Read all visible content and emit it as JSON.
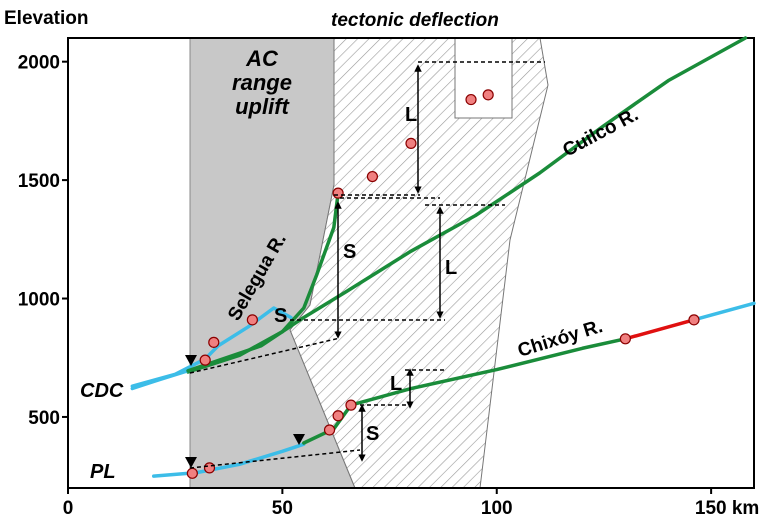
{
  "chart_data": {
    "type": "line",
    "title": "",
    "ylabel": "Elevation",
    "xlabel": "",
    "x_unit": "km",
    "xlim": [
      0,
      160
    ],
    "ylim": [
      200,
      2100
    ],
    "x_ticks": [
      0,
      50,
      100,
      150
    ],
    "y_ticks": [
      500,
      1000,
      1500,
      2000
    ],
    "grid": false,
    "colors": {
      "river_main": "#1a8c3a",
      "river_lower": "#3cbde8",
      "knickzone": "#e01010",
      "uplift_zone": "#c8c8c8",
      "marker_fill": "#f08080",
      "marker_green": "#4ab84a"
    },
    "rivers": [
      {
        "name": "Selegua R.",
        "segments": [
          {
            "color": "river_lower",
            "points": [
              [
                15,
                630
              ],
              [
                25,
                680
              ],
              [
                32,
                745
              ],
              [
                35,
                800
              ],
              [
                42,
                880
              ],
              [
                48,
                960
              ],
              [
                52,
                920
              ]
            ]
          },
          {
            "color": "river_main",
            "points": [
              [
                28,
                690
              ],
              [
                40,
                760
              ],
              [
                50,
                860
              ],
              [
                55,
                960
              ],
              [
                58,
                1100
              ],
              [
                62,
                1300
              ],
              [
                63,
                1445
              ]
            ]
          }
        ]
      },
      {
        "name": "Cuilco R.",
        "segments": [
          {
            "color": "river_lower",
            "points": [
              [
                15,
                620
              ],
              [
                20,
                650
              ],
              [
                28,
                695
              ]
            ]
          },
          {
            "color": "river_main",
            "points": [
              [
                28,
                695
              ],
              [
                45,
                800
              ],
              [
                55,
                920
              ],
              [
                65,
                1030
              ],
              [
                80,
                1200
              ],
              [
                95,
                1350
              ],
              [
                110,
                1530
              ],
              [
                125,
                1730
              ],
              [
                140,
                1920
              ],
              [
                158,
                2100
              ]
            ]
          }
        ]
      },
      {
        "name": "Chixóy R.",
        "segments": [
          {
            "color": "river_lower",
            "points": [
              [
                20,
                250
              ],
              [
                30,
                265
              ],
              [
                40,
                300
              ],
              [
                50,
                355
              ],
              [
                55,
                385
              ]
            ]
          },
          {
            "color": "river_main",
            "points": [
              [
                55,
                390
              ],
              [
                62,
                450
              ],
              [
                66,
                550
              ],
              [
                80,
                620
              ],
              [
                100,
                700
              ],
              [
                120,
                790
              ],
              [
                130,
                830
              ]
            ]
          },
          {
            "color": "knickzone",
            "points": [
              [
                130,
                830
              ],
              [
                146,
                910
              ]
            ]
          },
          {
            "color": "river_lower",
            "points": [
              [
                146,
                910
              ],
              [
                160,
                980
              ]
            ]
          }
        ]
      }
    ],
    "knickpoints": [
      {
        "x": 32,
        "y": 740
      },
      {
        "x": 34,
        "y": 815
      },
      {
        "x": 43,
        "y": 910
      },
      {
        "x": 63,
        "y": 1445
      },
      {
        "x": 71,
        "y": 1515
      },
      {
        "x": 80,
        "y": 1655
      },
      {
        "x": 94,
        "y": 1840
      },
      {
        "x": 98,
        "y": 1860
      },
      {
        "x": 29,
        "y": 262
      },
      {
        "x": 33,
        "y": 285
      },
      {
        "x": 61,
        "y": 445
      },
      {
        "x": 63,
        "y": 505
      },
      {
        "x": 66,
        "y": 550
      },
      {
        "x": 130,
        "y": 830
      },
      {
        "x": 146,
        "y": 910
      }
    ],
    "annotations": {
      "zone1": {
        "line1": "AC",
        "line2": "range",
        "line3": "uplift"
      },
      "zone2": "tectonic deflection",
      "markers": [
        "L",
        "L",
        "L",
        "S",
        "S",
        "S"
      ],
      "site1": "CDC",
      "site2": "PL"
    },
    "tick_labels": {
      "x": [
        "0",
        "50",
        "100",
        "150 km"
      ],
      "y": [
        "500",
        "1000",
        "1500",
        "2000"
      ]
    }
  }
}
